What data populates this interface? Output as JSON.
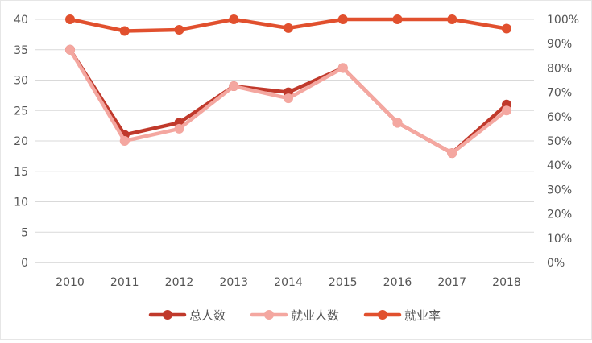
{
  "chart_data": {
    "type": "line",
    "categories": [
      "2010",
      "2011",
      "2012",
      "2013",
      "2014",
      "2015",
      "2016",
      "2017",
      "2018"
    ],
    "y_left": {
      "ylim": [
        0,
        40
      ],
      "ticks": [
        "0",
        "5",
        "10",
        "15",
        "20",
        "25",
        "30",
        "35",
        "40"
      ]
    },
    "y_right": {
      "ylim": [
        0,
        100
      ],
      "ticks": [
        "0%",
        "10%",
        "20%",
        "30%",
        "40%",
        "50%",
        "60%",
        "70%",
        "80%",
        "90%",
        "100%"
      ]
    },
    "grid": "horizontal",
    "legend_position": "bottom",
    "series": [
      {
        "name": "总人数",
        "axis": "left",
        "color": "#c0392b",
        "values": [
          35,
          21,
          23,
          29,
          28,
          32,
          23,
          18,
          26
        ]
      },
      {
        "name": "就业人数",
        "axis": "left",
        "color": "#f4a7a0",
        "values": [
          35,
          20,
          22,
          29,
          27,
          32,
          23,
          18,
          25
        ]
      },
      {
        "name": "就业率",
        "axis": "right",
        "color": "#e1502e",
        "values": [
          100,
          95.2,
          95.7,
          100,
          96.4,
          100,
          100,
          100,
          96.2
        ]
      }
    ]
  }
}
